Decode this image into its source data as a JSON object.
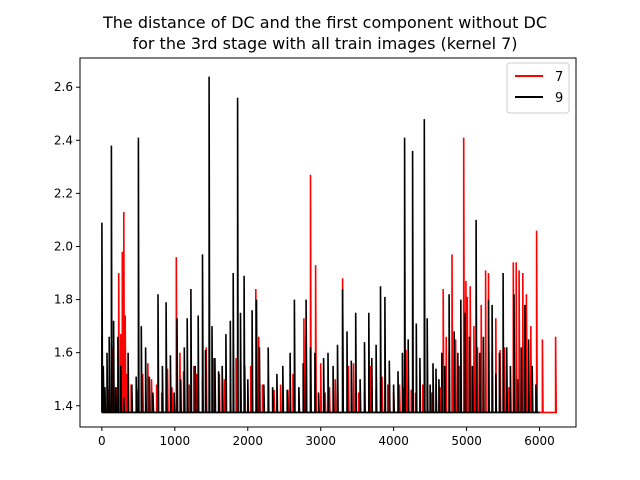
{
  "chart_data": {
    "type": "line",
    "title_lines": [
      "The distance of DC and the first component without DC",
      "for the 3rd stage with all train images (kernel 7)"
    ],
    "xlabel": "",
    "ylabel": "",
    "xlim": [
      -300,
      6500
    ],
    "ylim": [
      1.32,
      2.71
    ],
    "x_ticks": [
      0,
      1000,
      2000,
      3000,
      4000,
      5000,
      6000
    ],
    "x_tick_labels": [
      "0",
      "1000",
      "2000",
      "3000",
      "4000",
      "5000",
      "6000"
    ],
    "y_ticks": [
      1.4,
      1.6,
      1.8,
      2.0,
      2.2,
      2.4,
      2.6
    ],
    "y_tick_labels": [
      "1.4",
      "1.6",
      "1.8",
      "2.0",
      "2.2",
      "2.4",
      "2.6"
    ],
    "grid": false,
    "legend_position": "top-right",
    "baseline": 1.375,
    "series": [
      {
        "name": "7",
        "color": "#ff0000",
        "x_end": 6240,
        "spikes": [
          [
            0,
            1.66
          ],
          [
            20,
            1.45
          ],
          [
            40,
            1.47
          ],
          [
            80,
            1.46
          ],
          [
            150,
            1.62
          ],
          [
            200,
            1.47
          ],
          [
            230,
            1.9
          ],
          [
            260,
            1.67
          ],
          [
            280,
            1.98
          ],
          [
            300,
            2.13
          ],
          [
            320,
            1.74
          ],
          [
            340,
            1.52
          ],
          [
            400,
            1.48
          ],
          [
            480,
            1.46
          ],
          [
            560,
            1.52
          ],
          [
            630,
            1.56
          ],
          [
            680,
            1.5
          ],
          [
            750,
            1.48
          ],
          [
            820,
            1.45
          ],
          [
            900,
            1.54
          ],
          [
            960,
            1.47
          ],
          [
            1020,
            1.96
          ],
          [
            1070,
            1.6
          ],
          [
            1120,
            1.53
          ],
          [
            1200,
            1.48
          ],
          [
            1260,
            1.55
          ],
          [
            1300,
            1.52
          ],
          [
            1380,
            1.5
          ],
          [
            1430,
            1.62
          ],
          [
            1530,
            1.58
          ],
          [
            1610,
            1.52
          ],
          [
            1680,
            1.5
          ],
          [
            1760,
            1.6
          ],
          [
            1840,
            1.58
          ],
          [
            1900,
            1.57
          ],
          [
            1960,
            1.55
          ],
          [
            2040,
            1.55
          ],
          [
            2110,
            1.84
          ],
          [
            2150,
            1.66
          ],
          [
            2200,
            1.48
          ],
          [
            2280,
            1.5
          ],
          [
            2360,
            1.46
          ],
          [
            2450,
            1.48
          ],
          [
            2550,
            1.46
          ],
          [
            2620,
            1.52
          ],
          [
            2700,
            1.47
          ],
          [
            2770,
            1.73
          ],
          [
            2800,
            1.66
          ],
          [
            2860,
            2.27
          ],
          [
            2930,
            1.93
          ],
          [
            3000,
            1.56
          ],
          [
            3060,
            1.45
          ],
          [
            3120,
            1.47
          ],
          [
            3200,
            1.5
          ],
          [
            3300,
            1.88
          ],
          [
            3380,
            1.55
          ],
          [
            3450,
            1.56
          ],
          [
            3520,
            1.45
          ],
          [
            3600,
            1.45
          ],
          [
            3680,
            1.55
          ],
          [
            3760,
            1.46
          ],
          [
            3840,
            1.51
          ],
          [
            3920,
            1.48
          ],
          [
            4000,
            1.45
          ],
          [
            4080,
            1.48
          ],
          [
            4130,
            1.47
          ],
          [
            4170,
            1.61
          ],
          [
            4240,
            1.46
          ],
          [
            4300,
            1.45
          ],
          [
            4400,
            1.48
          ],
          [
            4460,
            1.48
          ],
          [
            4520,
            1.45
          ],
          [
            4580,
            1.48
          ],
          [
            4640,
            1.47
          ],
          [
            4680,
            1.84
          ],
          [
            4720,
            1.66
          ],
          [
            4760,
            1.6
          ],
          [
            4800,
            1.97
          ],
          [
            4850,
            1.65
          ],
          [
            4900,
            1.55
          ],
          [
            4960,
            2.41
          ],
          [
            4990,
            1.87
          ],
          [
            5010,
            1.81
          ],
          [
            5050,
            1.85
          ],
          [
            5100,
            1.7
          ],
          [
            5150,
            1.62
          ],
          [
            5200,
            1.78
          ],
          [
            5260,
            1.91
          ],
          [
            5300,
            1.9
          ],
          [
            5350,
            1.6
          ],
          [
            5400,
            1.73
          ],
          [
            5460,
            1.61
          ],
          [
            5520,
            1.62
          ],
          [
            5580,
            1.47
          ],
          [
            5640,
            1.94
          ],
          [
            5680,
            1.94
          ],
          [
            5720,
            1.91
          ],
          [
            5770,
            1.9
          ],
          [
            5820,
            1.82
          ],
          [
            5880,
            1.7
          ],
          [
            5960,
            2.06
          ],
          [
            6040,
            1.65
          ],
          [
            6220,
            1.66
          ]
        ]
      },
      {
        "name": "9",
        "color": "#000000",
        "x_end": 6000,
        "spikes": [
          [
            0,
            2.09
          ],
          [
            20,
            1.55
          ],
          [
            40,
            1.47
          ],
          [
            70,
            1.6
          ],
          [
            100,
            1.66
          ],
          [
            130,
            2.38
          ],
          [
            160,
            1.72
          ],
          [
            190,
            1.47
          ],
          [
            220,
            1.66
          ],
          [
            260,
            1.55
          ],
          [
            300,
            1.43
          ],
          [
            360,
            1.6
          ],
          [
            410,
            1.48
          ],
          [
            470,
            1.51
          ],
          [
            500,
            2.41
          ],
          [
            540,
            1.7
          ],
          [
            600,
            1.62
          ],
          [
            650,
            1.51
          ],
          [
            700,
            1.45
          ],
          [
            770,
            1.82
          ],
          [
            830,
            1.55
          ],
          [
            880,
            1.79
          ],
          [
            940,
            1.59
          ],
          [
            990,
            1.45
          ],
          [
            1030,
            1.73
          ],
          [
            1080,
            1.5
          ],
          [
            1130,
            1.62
          ],
          [
            1170,
            1.73
          ],
          [
            1220,
            1.84
          ],
          [
            1280,
            1.55
          ],
          [
            1320,
            1.74
          ],
          [
            1380,
            1.97
          ],
          [
            1420,
            1.61
          ],
          [
            1470,
            2.64
          ],
          [
            1510,
            1.7
          ],
          [
            1550,
            1.58
          ],
          [
            1600,
            1.53
          ],
          [
            1650,
            1.55
          ],
          [
            1700,
            1.67
          ],
          [
            1760,
            1.72
          ],
          [
            1800,
            1.9
          ],
          [
            1860,
            2.56
          ],
          [
            1900,
            1.75
          ],
          [
            1950,
            1.89
          ],
          [
            2000,
            1.5
          ],
          [
            2060,
            1.76
          ],
          [
            2120,
            1.8
          ],
          [
            2160,
            1.62
          ],
          [
            2220,
            1.48
          ],
          [
            2280,
            1.62
          ],
          [
            2340,
            1.47
          ],
          [
            2400,
            1.52
          ],
          [
            2480,
            1.55
          ],
          [
            2540,
            1.46
          ],
          [
            2580,
            1.6
          ],
          [
            2640,
            1.8
          ],
          [
            2700,
            1.47
          ],
          [
            2760,
            1.56
          ],
          [
            2800,
            1.8
          ],
          [
            2860,
            1.62
          ],
          [
            2920,
            1.6
          ],
          [
            2970,
            1.45
          ],
          [
            3040,
            1.58
          ],
          [
            3100,
            1.6
          ],
          [
            3170,
            1.55
          ],
          [
            3230,
            1.63
          ],
          [
            3300,
            1.84
          ],
          [
            3360,
            1.68
          ],
          [
            3420,
            1.57
          ],
          [
            3480,
            1.75
          ],
          [
            3540,
            1.5
          ],
          [
            3600,
            1.64
          ],
          [
            3660,
            1.75
          ],
          [
            3700,
            1.58
          ],
          [
            3760,
            1.63
          ],
          [
            3820,
            1.85
          ],
          [
            3880,
            1.81
          ],
          [
            3940,
            1.57
          ],
          [
            4000,
            1.48
          ],
          [
            4060,
            1.53
          ],
          [
            4120,
            1.6
          ],
          [
            4150,
            2.41
          ],
          [
            4200,
            1.65
          ],
          [
            4260,
            2.36
          ],
          [
            4310,
            1.71
          ],
          [
            4360,
            1.58
          ],
          [
            4420,
            2.48
          ],
          [
            4460,
            1.73
          ],
          [
            4500,
            1.48
          ],
          [
            4540,
            1.56
          ],
          [
            4580,
            1.54
          ],
          [
            4620,
            1.5
          ],
          [
            4660,
            1.6
          ],
          [
            4700,
            1.55
          ],
          [
            4760,
            1.82
          ],
          [
            4830,
            1.68
          ],
          [
            4880,
            1.6
          ],
          [
            4920,
            1.8
          ],
          [
            4980,
            1.75
          ],
          [
            5040,
            1.66
          ],
          [
            5080,
            1.55
          ],
          [
            5130,
            2.1
          ],
          [
            5180,
            1.6
          ],
          [
            5230,
            1.66
          ],
          [
            5300,
            1.8
          ],
          [
            5350,
            1.78
          ],
          [
            5400,
            1.52
          ],
          [
            5450,
            1.6
          ],
          [
            5500,
            1.9
          ],
          [
            5550,
            1.62
          ],
          [
            5600,
            1.55
          ],
          [
            5650,
            1.82
          ],
          [
            5700,
            1.5
          ],
          [
            5750,
            1.62
          ],
          [
            5800,
            1.78
          ],
          [
            5850,
            1.65
          ],
          [
            5900,
            1.55
          ],
          [
            5950,
            1.48
          ]
        ]
      }
    ]
  }
}
